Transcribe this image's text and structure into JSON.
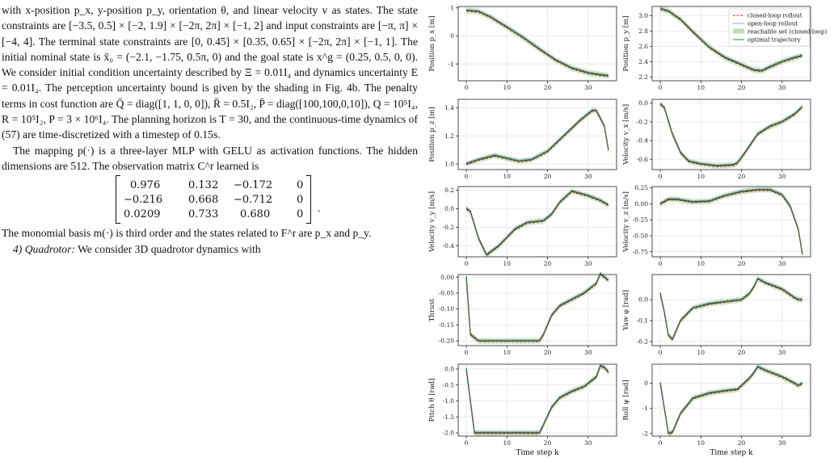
{
  "text": {
    "p1": "with x-position p_x, y-position p_y, orientation θ, and linear velocity v as states. The state constraints are [−3.5, 0.5] × [−2, 1.9] × [−2π, 2π] × [−1, 2] and input constraints are [−π, π] × [−4, 4]. The terminal state constraints are [0, 0.45] × [0.35, 0.65] × [−2π, 2π] × [−1, 1]. The initial nominal state is x̄₀ = (−2.1, −1.75, 0.5π, 0) and the goal state is x^g = (0.25, 0.5, 0, 0). We consider initial condition uncertainty described by Ξ = 0.01I₄ and dynamics uncertainty E = 0.01I₄. The perception uncertainty bound is given by the shading in Fig. 4b. The penalty terms in cost function are Q̄ = diag([1, 1, 0, 0]), R̄ = 0.5I₂, P̄ = diag([100,100,0,10]), Q = 10⁵I₄, R = 10⁵I₂, P = 3 × 10⁶I₄. The planning horizon is T = 30, and the continuous-time dynamics of (57) are time-discretized with a timestep of 0.15s.",
    "p2": "The mapping p(·) is a three-layer MLP with GELU as activation functions. The hidden dimensions are 512. The observation matrix C^r learned is",
    "matrix": [
      [
        "0.976",
        "0.132",
        "−0.172",
        "0"
      ],
      [
        "−0.216",
        "0.668",
        "−0.712",
        "0"
      ],
      [
        "0.0209",
        "0.733",
        "0.680",
        "0"
      ]
    ],
    "matrix_end": ".",
    "p3": "The monomial basis m(·) is third order and the states related to F^r are p_x and p_y.",
    "p4_head": "4) Quadrotor:",
    "p4_tail": "We consider 3D quadrotor dynamics with"
  },
  "figure": {
    "xlabel": "Time step k",
    "legend": [
      {
        "label": "closed-loop rollout",
        "color": "#d62728",
        "style": "dashed"
      },
      {
        "label": "open-loop rollout",
        "color": "#3b3bd0",
        "style": "dotted"
      },
      {
        "label": "reachable set (closed-loop)",
        "color": "#b9dfb0",
        "style": "patch"
      },
      {
        "label": "optimal trajectory",
        "color": "#2ca02c",
        "style": "solid"
      }
    ]
  },
  "chart_data": [
    {
      "type": "line",
      "ylabel": "Position p_x [m]",
      "xticks": [
        "0",
        "10",
        "20",
        "30"
      ],
      "yticks": [
        "1",
        "0",
        "-1"
      ],
      "xlim": [
        -2,
        37
      ],
      "ylim": [
        -1.6,
        1.05
      ],
      "series": [
        {
          "x": [
            0,
            3,
            6,
            10,
            14,
            18,
            22,
            26,
            30,
            33,
            35
          ],
          "values": [
            0.91,
            0.87,
            0.67,
            0.31,
            -0.06,
            -0.47,
            -0.86,
            -1.15,
            -1.32,
            -1.39,
            -1.42
          ]
        }
      ]
    },
    {
      "type": "line",
      "ylabel": "Position p_y [m]",
      "xticks": [
        "0",
        "10",
        "20",
        "30"
      ],
      "yticks": [
        "3.0",
        "2.8",
        "2.6",
        "2.4",
        "2.2"
      ],
      "xlim": [
        -2,
        37
      ],
      "ylim": [
        2.15,
        3.12
      ],
      "series": [
        {
          "x": [
            0,
            2,
            5,
            8,
            12,
            16,
            20,
            23,
            25,
            27,
            30,
            33,
            35
          ],
          "values": [
            3.09,
            3.06,
            2.95,
            2.79,
            2.59,
            2.45,
            2.36,
            2.29,
            2.28,
            2.33,
            2.4,
            2.45,
            2.48
          ]
        }
      ]
    },
    {
      "type": "line",
      "ylabel": "Position p_z [m]",
      "xticks": [
        "0",
        "10",
        "20",
        "30"
      ],
      "yticks": [
        "1.4",
        "1.2",
        "1.0"
      ],
      "xlim": [
        -2,
        37
      ],
      "ylim": [
        0.96,
        1.46
      ],
      "series": [
        {
          "x": [
            0,
            3,
            7,
            10,
            13,
            16,
            20,
            24,
            28,
            31,
            32,
            34,
            35
          ],
          "values": [
            1.0,
            1.03,
            1.06,
            1.04,
            1.02,
            1.03,
            1.09,
            1.2,
            1.31,
            1.38,
            1.38,
            1.27,
            1.1
          ]
        }
      ]
    },
    {
      "type": "line",
      "ylabel": "Velocity v_x [m/s]",
      "xticks": [
        "0",
        "10",
        "20",
        "30"
      ],
      "yticks": [
        "0.0",
        "-0.2",
        "-0.4",
        "-0.6"
      ],
      "xlim": [
        -2,
        37
      ],
      "ylim": [
        -0.71,
        0.04
      ],
      "series": [
        {
          "x": [
            0,
            1,
            3,
            5,
            7,
            10,
            14,
            18,
            19,
            21,
            24,
            27,
            30,
            33,
            35
          ],
          "values": [
            -0.01,
            -0.05,
            -0.33,
            -0.53,
            -0.62,
            -0.65,
            -0.67,
            -0.66,
            -0.64,
            -0.52,
            -0.33,
            -0.25,
            -0.2,
            -0.12,
            -0.04
          ]
        }
      ]
    },
    {
      "type": "line",
      "ylabel": "Velocity v_y [m/s]",
      "xticks": [
        "0",
        "10",
        "20",
        "30"
      ],
      "yticks": [
        "0.2",
        "0.0",
        "-0.2",
        "-0.4"
      ],
      "xlim": [
        -2,
        37
      ],
      "ylim": [
        -0.52,
        0.24
      ],
      "series": [
        {
          "x": [
            0,
            1,
            3,
            5,
            8,
            12,
            15,
            19,
            21,
            23,
            26,
            30,
            33,
            35
          ],
          "values": [
            0.0,
            -0.03,
            -0.32,
            -0.5,
            -0.4,
            -0.22,
            -0.15,
            -0.13,
            -0.06,
            0.07,
            0.19,
            0.14,
            0.09,
            0.04
          ]
        }
      ]
    },
    {
      "type": "line",
      "ylabel": "Velocity v_z [m/s]",
      "xticks": [
        "0",
        "10",
        "20",
        "30"
      ],
      "yticks": [
        "0.25",
        "0.00",
        "-0.25",
        "-0.50",
        "-0.75"
      ],
      "xlim": [
        -2,
        37
      ],
      "ylim": [
        -0.83,
        0.27
      ],
      "series": [
        {
          "x": [
            0,
            2,
            4,
            8,
            12,
            16,
            20,
            24,
            27,
            30,
            32,
            34,
            35
          ],
          "values": [
            0.0,
            0.07,
            0.07,
            0.03,
            0.04,
            0.13,
            0.19,
            0.22,
            0.22,
            0.14,
            -0.04,
            -0.4,
            -0.79
          ]
        }
      ]
    },
    {
      "type": "line",
      "ylabel": "Thrust",
      "xticks": [
        "0",
        "10",
        "20",
        "30"
      ],
      "yticks": [
        "0.00",
        "-0.05",
        "-0.10",
        "-0.15",
        "-0.20"
      ],
      "xlim": [
        -2,
        37
      ],
      "ylim": [
        -0.215,
        0.008
      ],
      "series": [
        {
          "x": [
            0,
            1,
            3,
            6,
            10,
            14,
            18,
            19,
            21,
            23,
            26,
            29,
            32,
            33,
            34,
            35
          ],
          "values": [
            0.0,
            -0.18,
            -0.2,
            -0.2,
            -0.2,
            -0.2,
            -0.2,
            -0.18,
            -0.12,
            -0.09,
            -0.07,
            -0.05,
            -0.02,
            0.01,
            0.0,
            -0.01
          ]
        }
      ]
    },
    {
      "type": "line",
      "ylabel": "Yaw φ [rad]",
      "xticks": [
        "0",
        "10",
        "20",
        "30"
      ],
      "yticks": [
        "0.0",
        "-0.1",
        "-0.2"
      ],
      "xlim": [
        -2,
        37
      ],
      "ylim": [
        -0.22,
        0.12
      ],
      "series": [
        {
          "x": [
            0,
            1,
            2,
            3,
            5,
            8,
            12,
            16,
            20,
            22,
            23,
            24,
            26,
            30,
            33,
            34,
            35
          ],
          "values": [
            0.03,
            -0.06,
            -0.17,
            -0.19,
            -0.1,
            -0.04,
            -0.02,
            -0.01,
            0.0,
            0.03,
            0.06,
            0.1,
            0.08,
            0.05,
            0.01,
            0.0,
            0.0
          ]
        }
      ]
    },
    {
      "type": "line",
      "ylabel": "Pitch θ [rad]",
      "xticks": [
        "0",
        "10",
        "20",
        "30"
      ],
      "yticks": [
        "0.0",
        "-0.5",
        "-1.0",
        "-1.5",
        "-2.0"
      ],
      "xlim": [
        -2,
        37
      ],
      "ylim": [
        -2.1,
        0.15
      ],
      "series": [
        {
          "x": [
            0,
            1,
            2,
            6,
            10,
            14,
            18,
            19,
            21,
            23,
            26,
            29,
            32,
            33,
            34,
            35
          ],
          "values": [
            0.0,
            -1.0,
            -2.0,
            -2.0,
            -2.0,
            -2.0,
            -2.0,
            -1.75,
            -1.2,
            -0.9,
            -0.7,
            -0.55,
            -0.25,
            0.1,
            0.05,
            -0.1
          ]
        }
      ]
    },
    {
      "type": "line",
      "ylabel": "Roll ψ [rad]",
      "xticks": [
        "0",
        "10",
        "20",
        "30"
      ],
      "yticks": [
        "0",
        "-1",
        "-2"
      ],
      "xlim": [
        -2,
        37
      ],
      "ylim": [
        -2.1,
        0.75
      ],
      "series": [
        {
          "x": [
            0,
            1,
            2,
            3,
            5,
            8,
            12,
            16,
            19,
            22,
            23,
            24,
            26,
            30,
            33,
            34,
            35
          ],
          "values": [
            0.0,
            -1.0,
            -2.0,
            -1.95,
            -1.2,
            -0.6,
            -0.4,
            -0.3,
            -0.25,
            0.2,
            0.4,
            0.65,
            0.5,
            0.25,
            0.0,
            -0.1,
            0.0
          ]
        }
      ]
    }
  ]
}
